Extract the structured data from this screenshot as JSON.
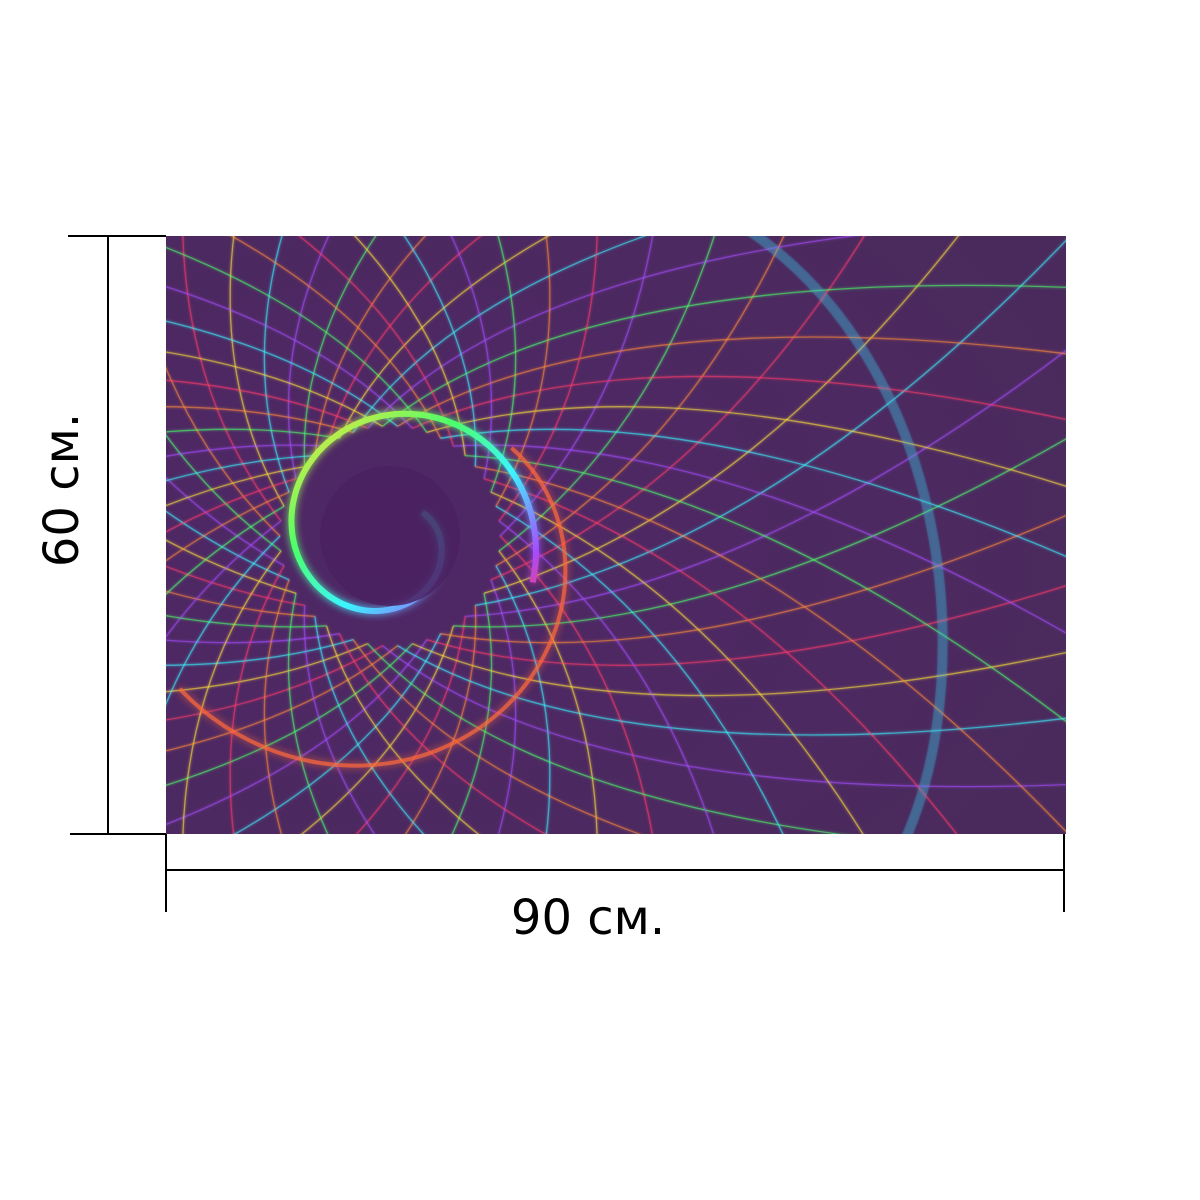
{
  "product_image": {
    "description_icon": "neon-rainbow-spiral-grid",
    "background_color": "#4a2a5e",
    "accent_colors": [
      "#ff3c6a",
      "#ffe23a",
      "#3cf4ff",
      "#a64cff",
      "#4cff6a",
      "#ff8a3a"
    ]
  },
  "dimensions": {
    "height_label": "60 см.",
    "width_label": "90 см."
  }
}
